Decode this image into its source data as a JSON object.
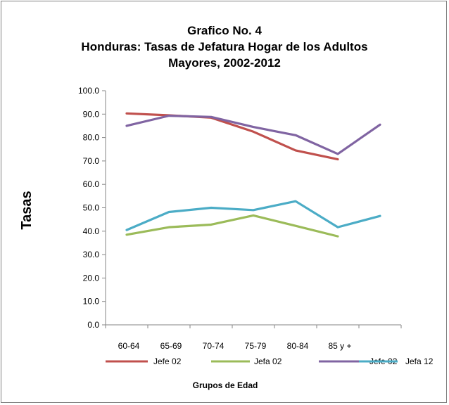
{
  "chart_data": {
    "type": "line",
    "title": [
      "Grafico No. 4",
      "Honduras: Tasas de Jefatura Hogar de los Adultos",
      "Mayores, 2002-2012"
    ],
    "ylabel": "Tasas",
    "xlabel": "Grupos de Edad",
    "ylim": [
      0,
      100
    ],
    "yticks": [
      "0.0",
      "10.0",
      "20.0",
      "30.0",
      "40.0",
      "50.0",
      "60.0",
      "70.0",
      "80.0",
      "90.0",
      "100.0"
    ],
    "categories": [
      "60-64",
      "65-69",
      "70-74",
      "75-79",
      "80-84",
      "85 y +",
      ""
    ],
    "legend_position": "bottom",
    "series": [
      {
        "name": "Jefe 02",
        "color": "#c0504d",
        "values": [
          90.3,
          89.5,
          88.5,
          82.5,
          74.5,
          70.7,
          null
        ]
      },
      {
        "name": "Jefa 02",
        "color": "#9bbb59",
        "values": [
          38.5,
          41.7,
          42.8,
          46.7,
          42.3,
          37.8,
          null
        ]
      },
      {
        "name": "Jefe 02",
        "color": "#8064a2",
        "values": [
          85.0,
          89.3,
          88.8,
          84.5,
          81.0,
          73.0,
          85.5
        ]
      },
      {
        "name": "Jefa 12",
        "color": "#4bacc6",
        "values": [
          40.5,
          48.2,
          50.0,
          49.0,
          52.8,
          41.7,
          46.5
        ]
      }
    ]
  }
}
